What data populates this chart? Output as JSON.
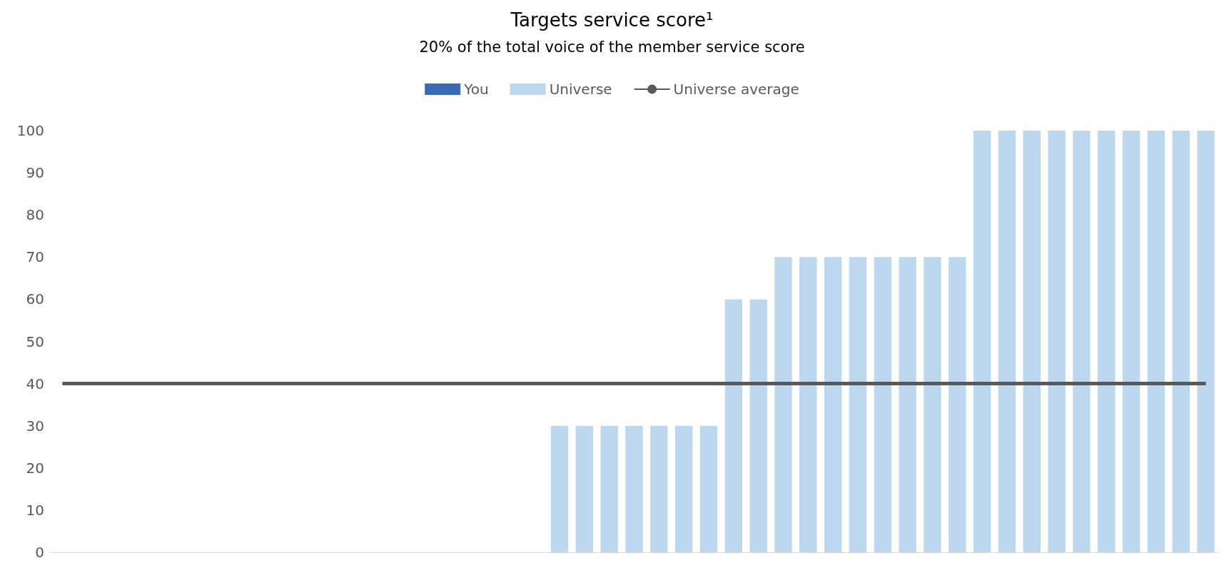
{
  "chart_data": {
    "type": "bar",
    "title": "Targets service score¹",
    "subtitle": "20% of the total voice of the member service score",
    "categories": [
      null,
      null,
      null,
      null,
      null,
      null,
      null,
      null,
      null,
      null,
      null,
      null,
      null,
      null,
      null,
      null,
      null,
      null,
      null,
      null,
      null,
      null,
      null,
      null,
      null,
      null,
      null,
      null,
      null,
      null,
      null,
      null,
      null,
      null,
      null,
      null,
      null,
      null,
      null,
      null,
      null,
      null,
      null,
      null,
      null,
      null,
      null
    ],
    "series": [
      {
        "name": "You",
        "color": "#3a6ab5",
        "values": [
          null,
          null,
          null,
          null,
          null,
          null,
          null,
          null,
          null,
          null,
          null,
          null,
          null,
          null,
          null,
          null,
          null,
          null,
          null,
          null,
          null,
          null,
          null,
          null,
          null,
          null,
          null,
          null,
          null,
          null,
          null,
          null,
          null,
          null,
          null,
          null,
          null,
          null,
          null,
          null,
          null,
          null,
          null,
          null,
          null,
          null,
          null
        ]
      },
      {
        "name": "Universe",
        "color": "#bdd7ee",
        "values": [
          0,
          0,
          0,
          0,
          0,
          0,
          0,
          0,
          0,
          0,
          0,
          0,
          0,
          0,
          0,
          0,
          0,
          0,
          0,
          0,
          30,
          30,
          30,
          30,
          30,
          30,
          30,
          60,
          60,
          70,
          70,
          70,
          70,
          70,
          70,
          70,
          70,
          100,
          100,
          100,
          100,
          100,
          100,
          100,
          100,
          100,
          100
        ]
      },
      {
        "name": "Universe average",
        "type": "line",
        "color": "#595959",
        "values": [
          40,
          40,
          40,
          40,
          40,
          40,
          40,
          40,
          40,
          40,
          40,
          40,
          40,
          40,
          40,
          40,
          40,
          40,
          40,
          40,
          40,
          40,
          40,
          40,
          40,
          40,
          40,
          40,
          40,
          40,
          40,
          40,
          40,
          40,
          40,
          40,
          40,
          40,
          40,
          40,
          40,
          40,
          40,
          40,
          40,
          40,
          40
        ]
      }
    ],
    "ylim": [
      0,
      100
    ],
    "yticks": [
      0,
      10,
      20,
      30,
      40,
      50,
      60,
      70,
      80,
      90,
      100
    ],
    "grid": false,
    "legend": "top",
    "marker": "none"
  }
}
